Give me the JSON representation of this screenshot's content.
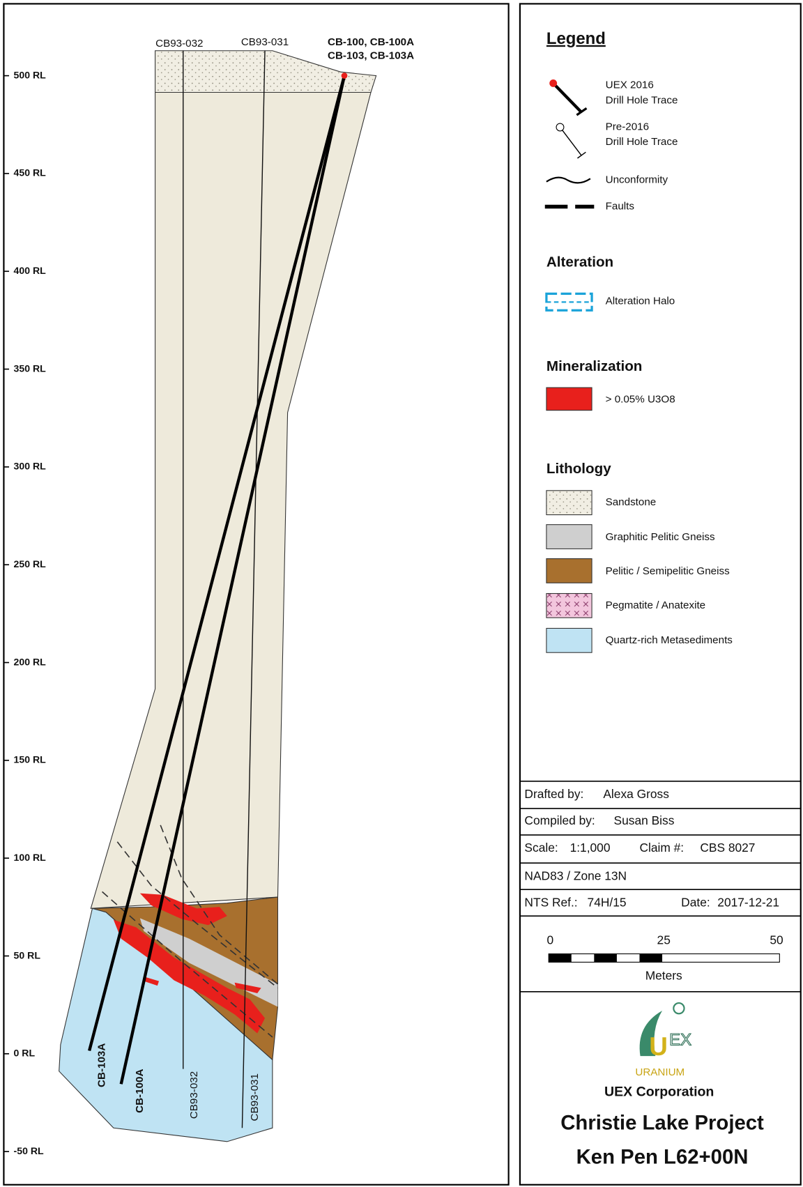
{
  "section": {
    "elevation_labels": [
      "500 RL",
      "450 RL",
      "400 RL",
      "350 RL",
      "300 RL",
      "250 RL",
      "200 RL",
      "150 RL",
      "100 RL",
      "50 RL",
      "0 RL",
      "-50 RL"
    ],
    "hole_labels_top": [
      "CB93-032",
      "CB93-031",
      "CB-100, CB-100A",
      "CB-103, CB-103A"
    ],
    "hole_labels_bottom": [
      "CB-103A",
      "CB-100A",
      "CB93-032",
      "CB93-031"
    ]
  },
  "legend": {
    "title": "Legend",
    "uex_2016": [
      "UEX 2016",
      "Drill Hole Trace"
    ],
    "pre_2016": [
      "Pre-2016",
      "Drill Hole Trace"
    ],
    "unconformity": "Unconformity",
    "faults": "Faults"
  },
  "alteration": {
    "title": "Alteration",
    "items": [
      "Alteration Halo"
    ]
  },
  "mineralization": {
    "title": "Mineralization",
    "items": [
      "> 0.05% U3O8"
    ]
  },
  "lithology": {
    "title": "Lithology",
    "items": [
      "Sandstone",
      "Graphitic Pelitic Gneiss",
      "Pelitic / Semipelitic Gneiss",
      "Pegmatite / Anatexite",
      "Quartz-rich Metasediments"
    ]
  },
  "title_block": {
    "drafted_by": {
      "label": "Drafted by:",
      "value": "Alexa Gross"
    },
    "compiled_by": {
      "label": "Compiled by:",
      "value": "Susan Biss"
    },
    "scale": {
      "label": "Scale:",
      "value": "1:1,000"
    },
    "claim": {
      "label": "Claim #:",
      "value": "CBS 8027"
    },
    "datum": "NAD83 / Zone 13N",
    "nts": {
      "label": "NTS Ref.:",
      "value": "74H/15"
    },
    "date": {
      "label": "Date:",
      "value": "2017-12-21"
    },
    "scale_bar": {
      "ticks": [
        "0",
        "25",
        "50"
      ],
      "unit": "Meters"
    },
    "logo": {
      "u": "U",
      "ex": "EX",
      "text": "URANIUM"
    },
    "company": "UEX Corporation",
    "project": "Christie Lake Project",
    "section": "Ken Pen L62+00N"
  }
}
